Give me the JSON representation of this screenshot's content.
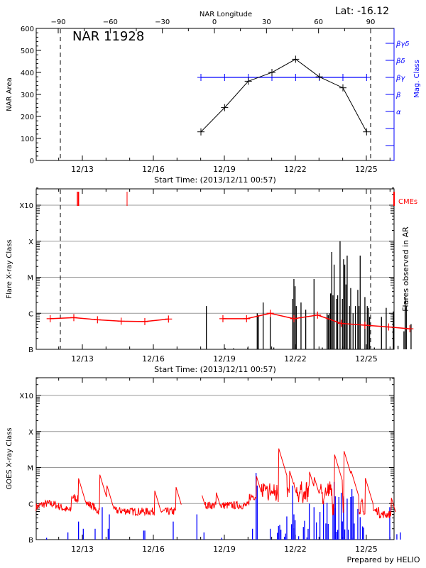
{
  "chart_data": [
    {
      "type": "line",
      "title": "NAR 11928",
      "latitude_label": "Lat: -16.12",
      "top_axis_label": "NAR Longitude",
      "top_axis_ticks": [
        "-90",
        "-60",
        "-30",
        "0",
        "30",
        "60",
        "90"
      ],
      "ylabel": "NAR Area",
      "ylim": [
        0,
        600
      ],
      "y_ticks": [
        "0",
        "100",
        "200",
        "300",
        "400",
        "500",
        "600"
      ],
      "xlabel": "Start Time: (2013/12/11 00:57)",
      "x_ticks": [
        "12/13",
        "12/16",
        "12/19",
        "12/22",
        "12/25"
      ],
      "disk_passage_markers_days": [
        1.6,
        14.7
      ],
      "series": [
        {
          "name": "NAR Area",
          "color": "#000000",
          "x_days": [
            7.0,
            8.0,
            9.0,
            10.0,
            11.0,
            12.0,
            13.0,
            14.0
          ],
          "values": [
            130,
            240,
            360,
            400,
            460,
            380,
            330,
            130
          ]
        },
        {
          "name": "Mag. Class",
          "color": "#0000ff",
          "x_days": [
            7.0,
            8.0,
            9.0,
            10.0,
            11.0,
            12.0,
            13.0,
            14.0
          ],
          "values": [
            "βγ",
            "βγ",
            "βγ",
            "βγ",
            "βγ",
            "βγ",
            "βγ",
            "βγ"
          ]
        }
      ],
      "right_axis_label": "Mag. Class",
      "right_axis_ticks": [
        "βγδ",
        "βδ",
        "βγ",
        "β",
        "α",
        "",
        ""
      ]
    },
    {
      "type": "bar",
      "ylabel": "Flare X-ray Class",
      "y_ticks": [
        "B",
        "C",
        "M",
        "X",
        "X10"
      ],
      "xlabel": "Start Time: (2013/12/11 00:57)",
      "x_ticks": [
        "12/13",
        "12/16",
        "12/19",
        "12/22",
        "12/25"
      ],
      "right_axis_label": "Flares observed in AR",
      "legend": [
        {
          "label": "CMEs",
          "color": "#ff0000"
        }
      ],
      "cme_days": [
        1.75,
        1.8,
        3.85
      ],
      "flare_log_levels_note": "0=B, 1=C, 2=M, 3=X, 4=X10",
      "flares": [
        {
          "day": 7.2,
          "level": 1.2
        },
        {
          "day": 8.0,
          "level": 0.03
        },
        {
          "day": 8.35,
          "level": 0.03
        },
        {
          "day": 8.95,
          "level": 0.05
        },
        {
          "day": 9.35,
          "level": 1.0
        },
        {
          "day": 9.4,
          "level": 0.95
        },
        {
          "day": 9.6,
          "level": 1.3
        },
        {
          "day": 9.9,
          "level": 0.9
        },
        {
          "day": 10.05,
          "level": 0.05
        },
        {
          "day": 10.85,
          "level": 1.4
        },
        {
          "day": 10.9,
          "level": 1.95
        },
        {
          "day": 10.95,
          "level": 1.75
        },
        {
          "day": 11.0,
          "level": 1.2
        },
        {
          "day": 11.2,
          "level": 1.3
        },
        {
          "day": 11.4,
          "level": 1.1
        },
        {
          "day": 11.75,
          "level": 1.95
        },
        {
          "day": 12.1,
          "level": 0.05
        },
        {
          "day": 12.3,
          "level": 1.0
        },
        {
          "day": 12.35,
          "level": 0.95
        },
        {
          "day": 12.4,
          "level": 1.0
        },
        {
          "day": 12.45,
          "level": 1.55
        },
        {
          "day": 12.5,
          "level": 2.7
        },
        {
          "day": 12.55,
          "level": 1.5
        },
        {
          "day": 12.6,
          "level": 2.35
        },
        {
          "day": 12.7,
          "level": 1.4
        },
        {
          "day": 12.75,
          "level": 1.5
        },
        {
          "day": 12.85,
          "level": 3.0
        },
        {
          "day": 12.95,
          "level": 1.4
        },
        {
          "day": 13.0,
          "level": 2.5
        },
        {
          "day": 13.05,
          "level": 2.35
        },
        {
          "day": 13.1,
          "level": 1.8
        },
        {
          "day": 13.15,
          "level": 2.6
        },
        {
          "day": 13.25,
          "level": 1.2
        },
        {
          "day": 13.3,
          "level": 1.7
        },
        {
          "day": 13.4,
          "level": 1.0
        },
        {
          "day": 13.5,
          "level": 1.2
        },
        {
          "day": 13.6,
          "level": 1.65
        },
        {
          "day": 13.65,
          "level": 1.2
        },
        {
          "day": 13.7,
          "level": 2.6
        },
        {
          "day": 13.9,
          "level": 1.45
        },
        {
          "day": 14.0,
          "level": 1.2
        },
        {
          "day": 14.05,
          "level": 1.15
        },
        {
          "day": 14.1,
          "level": 0.9
        },
        {
          "day": 14.3,
          "level": 0.05
        },
        {
          "day": 14.6,
          "level": 0.9
        },
        {
          "day": 14.8,
          "level": 1.15
        },
        {
          "day": 15.1,
          "level": 1.05
        },
        {
          "day": 15.3,
          "level": 0.1
        },
        {
          "day": 15.55,
          "level": 0.5
        },
        {
          "day": 15.6,
          "level": 1.45
        },
        {
          "day": 15.65,
          "level": 1.2
        },
        {
          "day": 15.85,
          "level": 0.7
        }
      ],
      "series": [
        {
          "name": "Flare average",
          "color": "#ff0000",
          "x_days": [
            0.6,
            1.6,
            2.6,
            3.6,
            4.6,
            5.6,
            7.9,
            8.9,
            9.9,
            10.9,
            11.9,
            12.9,
            13.9,
            14.9,
            15.8
          ],
          "values": [
            0.85,
            0.88,
            0.82,
            0.78,
            0.77,
            0.84,
            0.85,
            0.85,
            1.0,
            0.85,
            0.95,
            0.72,
            0.67,
            0.62,
            0.57
          ]
        }
      ]
    },
    {
      "type": "line",
      "ylabel": "GOES X-ray Class",
      "y_ticks": [
        "B",
        "C",
        "M",
        "X",
        "X10"
      ],
      "x_ticks": [
        "12/13",
        "12/16",
        "12/19",
        "12/22",
        "12/25"
      ],
      "series": [
        {
          "name": "GOES long channel",
          "color": "#ff0000",
          "note": "log flux, approx. 0.8–1.9 class levels, peaks near M at 12/20 and 12/22"
        },
        {
          "name": "GOES short channel",
          "color": "#0000ff",
          "note": "bursts from B up to ~M during 12/20–12/23"
        }
      ]
    }
  ],
  "footer": {
    "prepared_by": "Prepared by HELIO"
  }
}
